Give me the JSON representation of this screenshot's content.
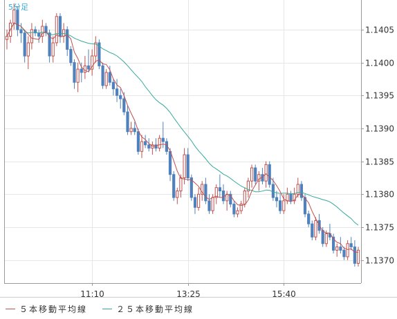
{
  "timeframe_label": "5分足",
  "legend": [
    {
      "label": "５本移動平均線",
      "color": "#c0504d"
    },
    {
      "label": "２５本移動平均線",
      "color": "#33a99a"
    }
  ],
  "colors": {
    "up": "#c0504d",
    "down": "#4f81bd",
    "grid": "#e6e6e6",
    "axis": "#999999",
    "text": "#333333"
  },
  "chart_data": {
    "type": "candlestick",
    "y_ticks": [
      "1.1370",
      "1.1375",
      "1.1380",
      "1.1385",
      "1.1390",
      "1.1395",
      "1.1400",
      "1.1405"
    ],
    "x_ticks": [
      {
        "label": "11:10",
        "index": 24
      },
      {
        "label": "13:25",
        "index": 51
      },
      {
        "label": "15:40",
        "index": 78
      }
    ],
    "ylim": [
      1.13665,
      1.14095
    ],
    "grid": true,
    "candles": [
      [
        1.14035,
        1.1405,
        1.1402,
        1.1404
      ],
      [
        1.1404,
        1.14065,
        1.1403,
        1.1406
      ],
      [
        1.1406,
        1.1409,
        1.1405,
        1.1408
      ],
      [
        1.1408,
        1.14085,
        1.1404,
        1.1405
      ],
      [
        1.1405,
        1.1406,
        1.1403,
        1.14045
      ],
      [
        1.14045,
        1.1405,
        1.14,
        1.1401
      ],
      [
        1.1401,
        1.1404,
        1.1399,
        1.1403
      ],
      [
        1.1403,
        1.1406,
        1.1402,
        1.1405
      ],
      [
        1.1405,
        1.14055,
        1.1404,
        1.14045
      ],
      [
        1.14045,
        1.1405,
        1.1403,
        1.1404
      ],
      [
        1.1404,
        1.14065,
        1.1403,
        1.14055
      ],
      [
        1.14055,
        1.1406,
        1.1404,
        1.14045
      ],
      [
        1.14045,
        1.1405,
        1.14,
        1.1401
      ],
      [
        1.1401,
        1.1404,
        1.14,
        1.1403
      ],
      [
        1.1403,
        1.14075,
        1.14025,
        1.1407
      ],
      [
        1.1407,
        1.14075,
        1.1403,
        1.1404
      ],
      [
        1.1404,
        1.1406,
        1.1403,
        1.1405
      ],
      [
        1.1405,
        1.14055,
        1.1401,
        1.1402
      ],
      [
        1.1402,
        1.14025,
        1.13995,
        1.14
      ],
      [
        1.14,
        1.14005,
        1.1396,
        1.1397
      ],
      [
        1.1397,
        1.14,
        1.13955,
        1.1399
      ],
      [
        1.1399,
        1.14,
        1.1397,
        1.13985
      ],
      [
        1.13985,
        1.1401,
        1.13975,
        1.13995
      ],
      [
        1.13995,
        1.1402,
        1.13985,
        1.1399
      ],
      [
        1.1399,
        1.1402,
        1.1398,
        1.1401
      ],
      [
        1.1401,
        1.1404,
        1.14,
        1.1403
      ],
      [
        1.1403,
        1.14035,
        1.1399,
        1.13995
      ],
      [
        1.13995,
        1.14,
        1.1396,
        1.13965
      ],
      [
        1.13965,
        1.1399,
        1.1396,
        1.13985
      ],
      [
        1.13985,
        1.13995,
        1.13965,
        1.1397
      ],
      [
        1.1397,
        1.13975,
        1.1395,
        1.1396
      ],
      [
        1.1396,
        1.13975,
        1.1394,
        1.1395
      ],
      [
        1.1395,
        1.1396,
        1.1393,
        1.13945
      ],
      [
        1.13945,
        1.13955,
        1.1392,
        1.13925
      ],
      [
        1.13925,
        1.13935,
        1.1389,
        1.13895
      ],
      [
        1.13895,
        1.1391,
        1.1389,
        1.139
      ],
      [
        1.139,
        1.1391,
        1.1389,
        1.13895
      ],
      [
        1.13895,
        1.139,
        1.1386,
        1.13865
      ],
      [
        1.13865,
        1.1389,
        1.13855,
        1.1388
      ],
      [
        1.1388,
        1.1389,
        1.1387,
        1.13875
      ],
      [
        1.13875,
        1.13885,
        1.13865,
        1.1387
      ],
      [
        1.1387,
        1.1388,
        1.1386,
        1.13875
      ],
      [
        1.13875,
        1.13885,
        1.13865,
        1.1387
      ],
      [
        1.1387,
        1.1389,
        1.13865,
        1.13885
      ],
      [
        1.13885,
        1.1391,
        1.1387,
        1.1388
      ],
      [
        1.1388,
        1.13885,
        1.1386,
        1.13865
      ],
      [
        1.13865,
        1.1387,
        1.1382,
        1.1383
      ],
      [
        1.1383,
        1.13835,
        1.1379,
        1.13795
      ],
      [
        1.13795,
        1.1381,
        1.13785,
        1.13805
      ],
      [
        1.13805,
        1.1383,
        1.13795,
        1.13825
      ],
      [
        1.13825,
        1.1387,
        1.13815,
        1.1386
      ],
      [
        1.1386,
        1.1387,
        1.1382,
        1.13825
      ],
      [
        1.13825,
        1.1383,
        1.1379,
        1.13795
      ],
      [
        1.13795,
        1.138,
        1.1377,
        1.1378
      ],
      [
        1.1378,
        1.1381,
        1.13775,
        1.138
      ],
      [
        1.138,
        1.1382,
        1.1379,
        1.13815
      ],
      [
        1.13815,
        1.13825,
        1.13785,
        1.1379
      ],
      [
        1.1379,
        1.138,
        1.1377,
        1.13775
      ],
      [
        1.13775,
        1.138,
        1.1377,
        1.13795
      ],
      [
        1.13795,
        1.13815,
        1.13785,
        1.1381
      ],
      [
        1.1381,
        1.1383,
        1.13795,
        1.13805
      ],
      [
        1.13805,
        1.13815,
        1.13785,
        1.1379
      ],
      [
        1.1379,
        1.13805,
        1.13775,
        1.138
      ],
      [
        1.138,
        1.13805,
        1.1378,
        1.13785
      ],
      [
        1.13785,
        1.1379,
        1.13765,
        1.1377
      ],
      [
        1.1377,
        1.1378,
        1.13765,
        1.13775
      ],
      [
        1.13775,
        1.1379,
        1.1377,
        1.13785
      ],
      [
        1.13785,
        1.1381,
        1.1378,
        1.13805
      ],
      [
        1.13805,
        1.13825,
        1.13795,
        1.1382
      ],
      [
        1.1382,
        1.13845,
        1.1381,
        1.1384
      ],
      [
        1.1384,
        1.13845,
        1.13815,
        1.1382
      ],
      [
        1.1382,
        1.13835,
        1.13805,
        1.1383
      ],
      [
        1.1383,
        1.1384,
        1.13815,
        1.1382
      ],
      [
        1.1382,
        1.1385,
        1.1381,
        1.13845
      ],
      [
        1.13845,
        1.1385,
        1.1381,
        1.13815
      ],
      [
        1.13815,
        1.13825,
        1.1379,
        1.13795
      ],
      [
        1.13795,
        1.13805,
        1.1378,
        1.1379
      ],
      [
        1.1379,
        1.138,
        1.1377,
        1.13775
      ],
      [
        1.13775,
        1.138,
        1.1377,
        1.1379
      ],
      [
        1.1379,
        1.1381,
        1.13785,
        1.138
      ],
      [
        1.138,
        1.13805,
        1.13785,
        1.1379
      ],
      [
        1.1379,
        1.1381,
        1.13785,
        1.138
      ],
      [
        1.138,
        1.13825,
        1.13795,
        1.13815
      ],
      [
        1.13815,
        1.1382,
        1.1379,
        1.13795
      ],
      [
        1.13795,
        1.138,
        1.13765,
        1.1377
      ],
      [
        1.1377,
        1.13775,
        1.1375,
        1.13755
      ],
      [
        1.13755,
        1.1376,
        1.1373,
        1.13735
      ],
      [
        1.13735,
        1.13765,
        1.1373,
        1.1376
      ],
      [
        1.1376,
        1.1377,
        1.1374,
        1.13745
      ],
      [
        1.13745,
        1.1375,
        1.1372,
        1.13725
      ],
      [
        1.13725,
        1.13745,
        1.1372,
        1.1374
      ],
      [
        1.1374,
        1.13755,
        1.1373,
        1.13735
      ],
      [
        1.13735,
        1.1374,
        1.1371,
        1.13715
      ],
      [
        1.13715,
        1.13725,
        1.13705,
        1.1372
      ],
      [
        1.1372,
        1.13735,
        1.1371,
        1.13715
      ],
      [
        1.13715,
        1.1372,
        1.137,
        1.13705
      ],
      [
        1.13705,
        1.1373,
        1.137,
        1.13725
      ],
      [
        1.13725,
        1.13735,
        1.13715,
        1.1372
      ],
      [
        1.1372,
        1.1373,
        1.1369,
        1.13695
      ],
      [
        1.13695,
        1.1372,
        1.1369,
        1.13715
      ]
    ]
  }
}
